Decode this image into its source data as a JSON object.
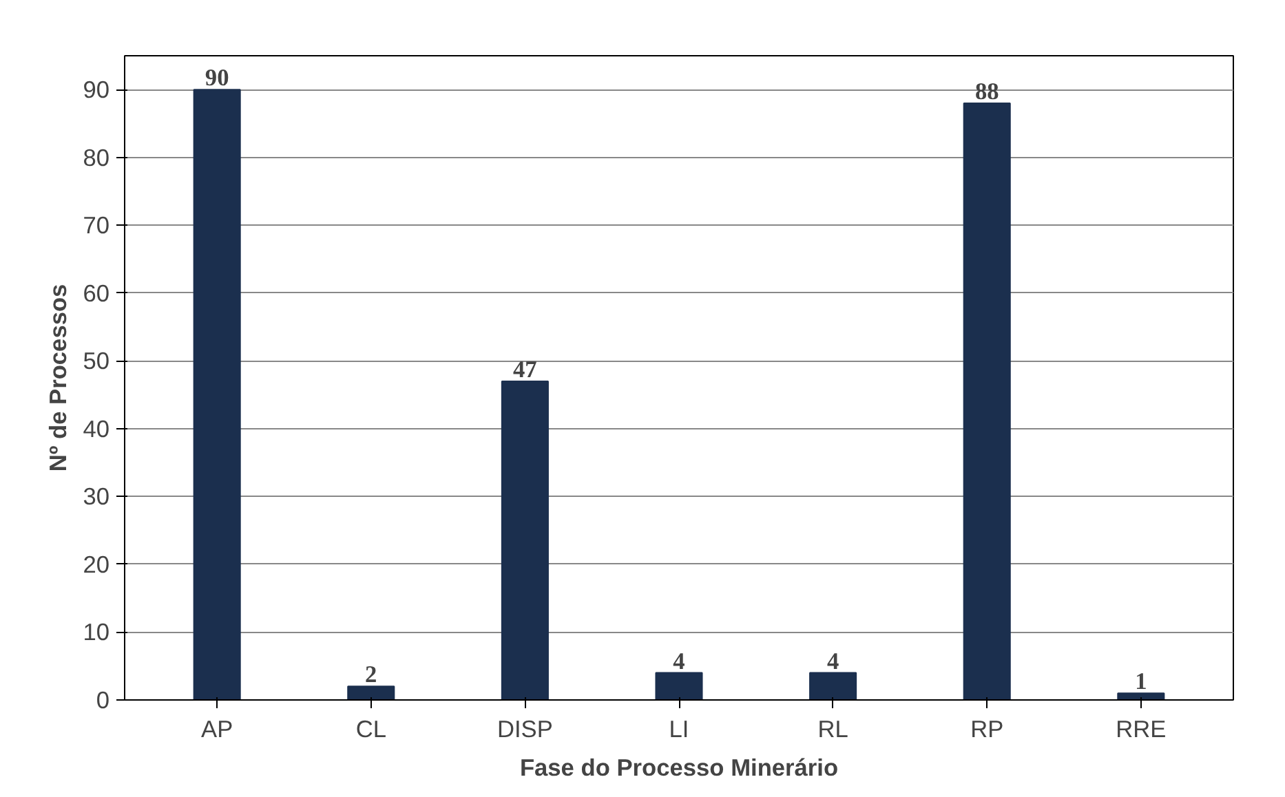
{
  "chart_data": {
    "type": "bar",
    "xlabel": "Fase do Processo Minerário",
    "ylabel": "Nº de Processos",
    "categories": [
      "AP",
      "CL",
      "DISP",
      "LI",
      "RL",
      "RP",
      "RRE"
    ],
    "values": [
      90,
      2,
      47,
      4,
      4,
      88,
      1
    ],
    "color": "#1b2f4e",
    "ylim": [
      0,
      95
    ],
    "yticks": [
      0,
      10,
      20,
      30,
      40,
      50,
      60,
      70,
      80,
      90
    ],
    "grid": "y",
    "data_labels": true
  }
}
